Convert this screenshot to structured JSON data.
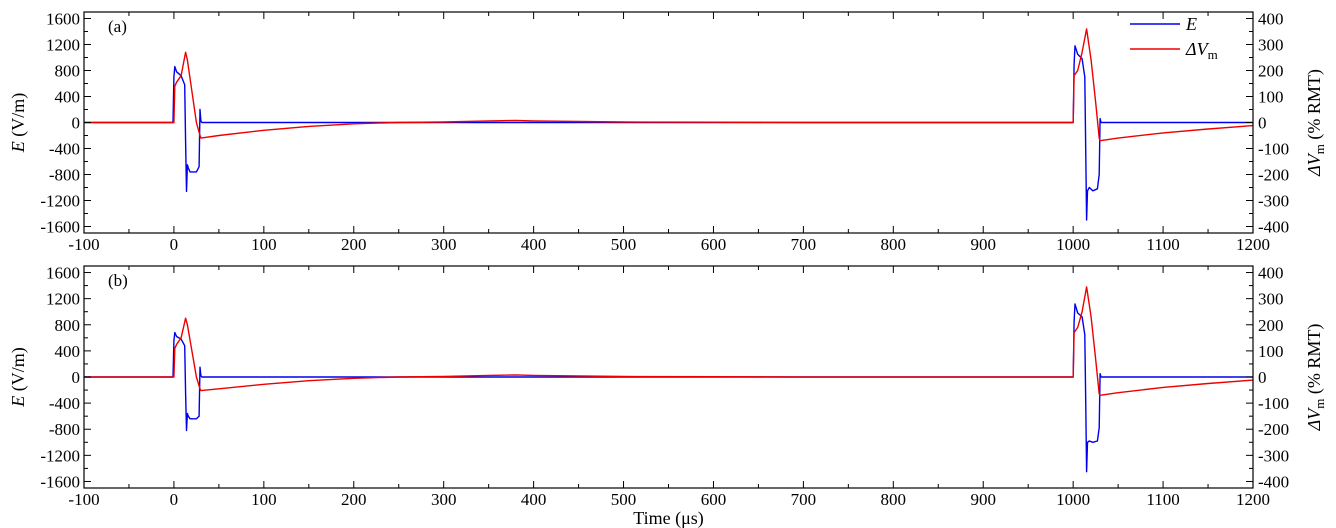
{
  "chart_data": [
    {
      "type": "line",
      "panel_label": "(a)",
      "xlabel": "",
      "xlim": [
        -100,
        1200
      ],
      "x_ticks": [
        -100,
        0,
        100,
        200,
        300,
        400,
        500,
        600,
        700,
        800,
        900,
        1000,
        1100,
        1200
      ],
      "y_left": {
        "label_main": "E",
        "label_unit": " (V/m)",
        "lim": [
          -1700,
          1700
        ],
        "ticks": [
          -1600,
          -1200,
          -800,
          -400,
          0,
          400,
          800,
          1200,
          1600
        ]
      },
      "y_right": {
        "label_main": "ΔV",
        "label_sub": "m",
        "label_unit": " (% RMT)",
        "lim": [
          -425,
          425
        ],
        "ticks": [
          -400,
          -300,
          -200,
          -100,
          0,
          100,
          200,
          300,
          400
        ]
      },
      "legend": {
        "position": "top-right",
        "entries": [
          {
            "main": "E",
            "sub": ""
          },
          {
            "main": "ΔV",
            "sub": "m"
          }
        ]
      },
      "series": [
        {
          "name": "E",
          "axis": "left",
          "color": "#0000ee",
          "x": [
            -100,
            -1,
            0,
            1,
            3,
            8,
            12,
            13,
            14,
            15,
            16,
            18,
            20,
            25,
            28,
            29,
            30,
            31,
            33,
            60,
            1000,
            1001,
            1002,
            1005,
            1010,
            1013,
            1014,
            1015,
            1016,
            1018,
            1022,
            1027,
            1029,
            1030,
            1031,
            1040,
            1200
          ],
          "y": [
            0,
            0,
            700,
            860,
            780,
            720,
            580,
            -300,
            -1060,
            -650,
            -700,
            -760,
            -760,
            -760,
            -680,
            200,
            20,
            0,
            0,
            0,
            0,
            900,
            1180,
            1050,
            980,
            700,
            -400,
            -1500,
            -1050,
            -1000,
            -1050,
            -1020,
            -800,
            60,
            0,
            0,
            0
          ]
        },
        {
          "name": "ΔV_m",
          "axis": "right",
          "color": "#ee0000",
          "x": [
            -100,
            0,
            1,
            3,
            8,
            13,
            15,
            20,
            25,
            29,
            30,
            50,
            100,
            150,
            200,
            250,
            300,
            350,
            380,
            400,
            500,
            600,
            700,
            800,
            900,
            999,
            1000,
            1001,
            1005,
            1010,
            1015,
            1020,
            1025,
            1029,
            1030,
            1050,
            1100,
            1150,
            1200
          ],
          "y": [
            0,
            0,
            140,
            155,
            180,
            270,
            240,
            120,
            0,
            -50,
            -60,
            -50,
            -30,
            -15,
            -5,
            0,
            2,
            6,
            8,
            6,
            2,
            1,
            0,
            0,
            0,
            0,
            0,
            180,
            200,
            270,
            360,
            240,
            80,
            -60,
            -70,
            -60,
            -40,
            -25,
            -12
          ]
        }
      ]
    },
    {
      "type": "line",
      "panel_label": "(b)",
      "xlabel": "Time (μs)",
      "xlim": [
        -100,
        1200
      ],
      "x_ticks": [
        -100,
        0,
        100,
        200,
        300,
        400,
        500,
        600,
        700,
        800,
        900,
        1000,
        1100,
        1200
      ],
      "y_left": {
        "label_main": "E",
        "label_unit": " (V/m)",
        "lim": [
          -1700,
          1700
        ],
        "ticks": [
          -1600,
          -1200,
          -800,
          -400,
          0,
          400,
          800,
          1200,
          1600
        ]
      },
      "y_right": {
        "label_main": "ΔV",
        "label_sub": "m",
        "label_unit": " (% RMT)",
        "lim": [
          -425,
          425
        ],
        "ticks": [
          -400,
          -300,
          -200,
          -100,
          0,
          100,
          200,
          300,
          400
        ]
      },
      "legend": null,
      "series": [
        {
          "name": "E",
          "axis": "left",
          "color": "#0000ee",
          "x": [
            -100,
            -1,
            0,
            1,
            3,
            8,
            12,
            13,
            14,
            15,
            16,
            18,
            20,
            25,
            28,
            29,
            30,
            31,
            33,
            60,
            1000,
            1001,
            1002,
            1005,
            1010,
            1013,
            1014,
            1015,
            1016,
            1018,
            1022,
            1027,
            1029,
            1030,
            1031,
            1040,
            1200
          ],
          "y": [
            0,
            0,
            550,
            680,
            620,
            580,
            480,
            -250,
            -820,
            -560,
            -600,
            -640,
            -640,
            -640,
            -600,
            150,
            20,
            0,
            0,
            0,
            0,
            850,
            1120,
            980,
            920,
            650,
            -350,
            -1450,
            -1000,
            -980,
            -1000,
            -980,
            -780,
            50,
            0,
            0,
            0
          ]
        },
        {
          "name": "ΔV_m",
          "axis": "right",
          "color": "#ee0000",
          "x": [
            -100,
            0,
            1,
            3,
            8,
            13,
            15,
            20,
            25,
            29,
            30,
            50,
            100,
            150,
            200,
            250,
            300,
            350,
            380,
            400,
            500,
            600,
            700,
            800,
            900,
            999,
            1000,
            1001,
            1005,
            1010,
            1015,
            1020,
            1025,
            1029,
            1030,
            1050,
            1100,
            1150,
            1200
          ],
          "y": [
            0,
            0,
            110,
            125,
            150,
            225,
            200,
            100,
            0,
            -45,
            -52,
            -45,
            -28,
            -14,
            -5,
            0,
            2,
            6,
            8,
            6,
            2,
            1,
            0,
            0,
            0,
            0,
            0,
            170,
            190,
            250,
            345,
            230,
            70,
            -65,
            -70,
            -60,
            -40,
            -25,
            -12
          ]
        }
      ]
    }
  ]
}
